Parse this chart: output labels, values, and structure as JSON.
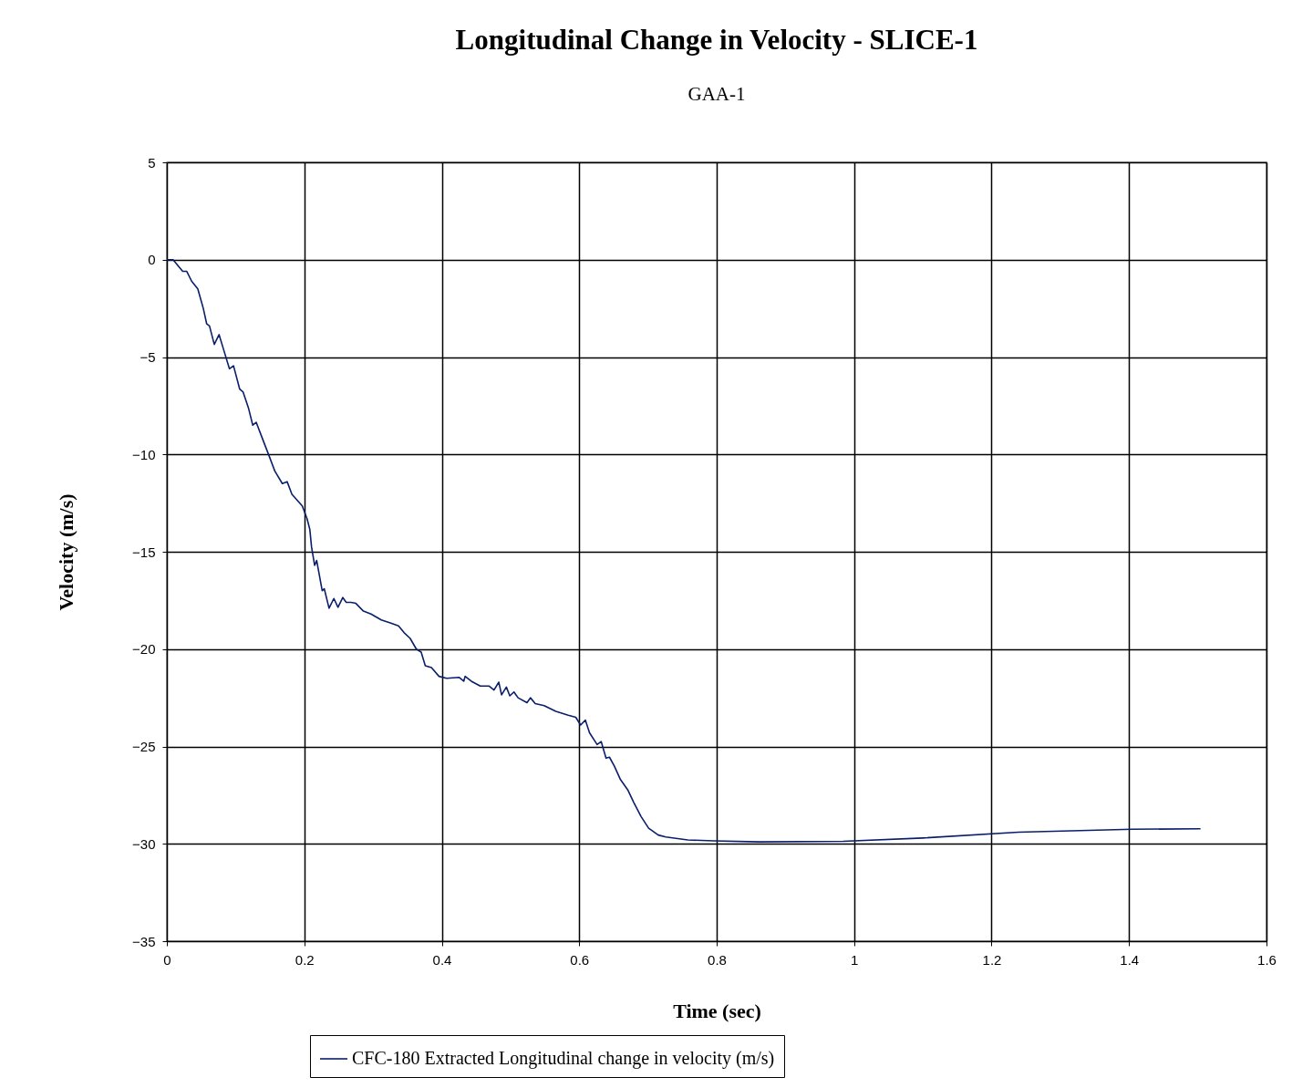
{
  "chart_data": {
    "type": "line",
    "title": "Longitudinal  Change in Velocity - SLICE-1",
    "subtitle": "GAA-1",
    "xlabel": "Time (sec)",
    "ylabel": "Velocity (m/s)",
    "xlim": [
      0,
      1.6
    ],
    "xticks": [
      0,
      0.2,
      0.4,
      0.6,
      0.8,
      1,
      1.2,
      1.4,
      1.6
    ],
    "ylim": [
      -35,
      5
    ],
    "yticks": [
      -35,
      -30,
      -25,
      -20,
      -15,
      -10,
      -5,
      0,
      5
    ],
    "grid": true,
    "legend": "bottom",
    "marker": "none",
    "line_style": "solid",
    "series": [
      {
        "name": "CFC-180 Extracted Longitudinal change in velocity (m/s)",
        "color": "#0a1f6b",
        "x": [
          0,
          0.009,
          0.023,
          0.029,
          0.036,
          0.045,
          0.053,
          0.058,
          0.062,
          0.069,
          0.076,
          0.082,
          0.091,
          0.097,
          0.106,
          0.111,
          0.119,
          0.125,
          0.13,
          0.137,
          0.149,
          0.157,
          0.168,
          0.175,
          0.182,
          0.197,
          0.204,
          0.208,
          0.2105,
          0.215,
          0.218,
          0.226,
          0.229,
          0.236,
          0.243,
          0.249,
          0.256,
          0.261,
          0.268,
          0.275,
          0.286,
          0.297,
          0.312,
          0.325,
          0.337,
          0.345,
          0.354,
          0.363,
          0.37,
          0.376,
          0.385,
          0.396,
          0.407,
          0.425,
          0.432,
          0.434,
          0.443,
          0.456,
          0.469,
          0.476,
          0.483,
          0.487,
          0.494,
          0.499,
          0.505,
          0.511,
          0.524,
          0.529,
          0.536,
          0.549,
          0.566,
          0.584,
          0.595,
          0.602,
          0.609,
          0.615,
          0.626,
          0.632,
          0.639,
          0.644,
          0.651,
          0.66,
          0.671,
          0.679,
          0.69,
          0.701,
          0.715,
          0.726,
          0.758,
          0.796,
          0.862,
          0.984,
          1.1,
          1.239,
          1.405,
          1.504
        ],
        "values": [
          0,
          0,
          -0.6,
          -0.6,
          -1.1,
          -1.5,
          -2.5,
          -3.3,
          -3.4,
          -4.35,
          -3.85,
          -4.55,
          -5.6,
          -5.45,
          -6.65,
          -6.8,
          -7.65,
          -8.5,
          -8.35,
          -9.0,
          -10.1,
          -10.85,
          -11.5,
          -11.4,
          -12.05,
          -12.65,
          -13.3,
          -13.85,
          -14.75,
          -15.7,
          -15.45,
          -17.0,
          -16.9,
          -17.9,
          -17.4,
          -17.85,
          -17.35,
          -17.6,
          -17.6,
          -17.65,
          -18.05,
          -18.2,
          -18.5,
          -18.65,
          -18.8,
          -19.15,
          -19.45,
          -20.0,
          -20.15,
          -20.85,
          -20.95,
          -21.4,
          -21.5,
          -21.45,
          -21.65,
          -21.4,
          -21.65,
          -21.9,
          -21.9,
          -22.1,
          -21.7,
          -22.35,
          -21.95,
          -22.4,
          -22.2,
          -22.5,
          -22.75,
          -22.5,
          -22.8,
          -22.9,
          -23.2,
          -23.4,
          -23.5,
          -23.9,
          -23.65,
          -24.3,
          -24.9,
          -24.75,
          -25.6,
          -25.55,
          -26.0,
          -26.7,
          -27.25,
          -27.85,
          -28.6,
          -29.2,
          -29.55,
          -29.65,
          -29.8,
          -29.85,
          -29.9,
          -29.87,
          -29.7,
          -29.4,
          -29.25,
          -29.23
        ]
      }
    ]
  }
}
